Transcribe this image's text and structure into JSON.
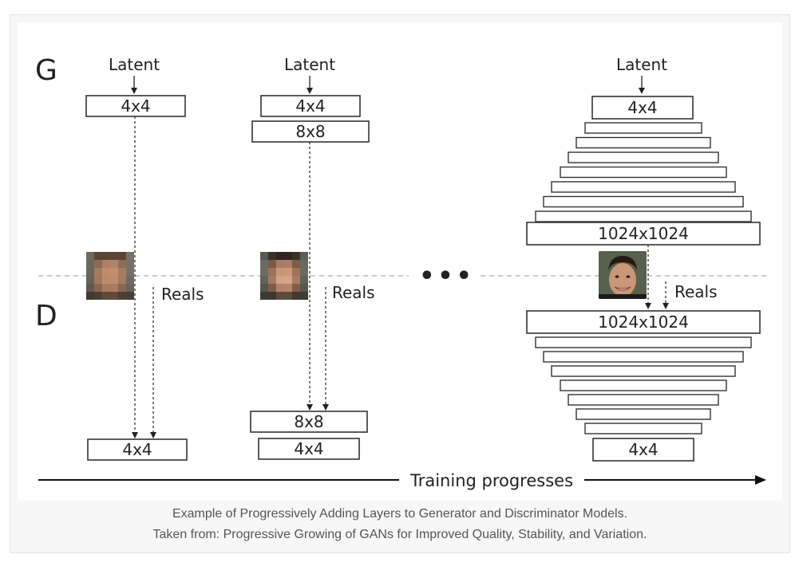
{
  "diagram": {
    "generator_label": "G",
    "discriminator_label": "D",
    "latent_label": "Latent",
    "reals_label": "Reals",
    "ellipsis": "•••",
    "stage1": {
      "gen_layers": [
        "4x4"
      ],
      "disc_layers": [
        "4x4"
      ]
    },
    "stage2": {
      "gen_layers": [
        "4x4",
        "8x8"
      ],
      "disc_layers": [
        "8x8",
        "4x4"
      ]
    },
    "stage3": {
      "gen_top": "4x4",
      "gen_bottom": "1024x1024",
      "disc_top": "1024x1024",
      "disc_bottom": "4x4"
    },
    "progress_label": "Training progresses"
  },
  "caption": {
    "line1": "Example of Progressively Adding Layers to Generator and Discriminator Models.",
    "line2": "Taken from: Progressive Growing of GANs for Improved Quality, Stability, and Variation."
  }
}
